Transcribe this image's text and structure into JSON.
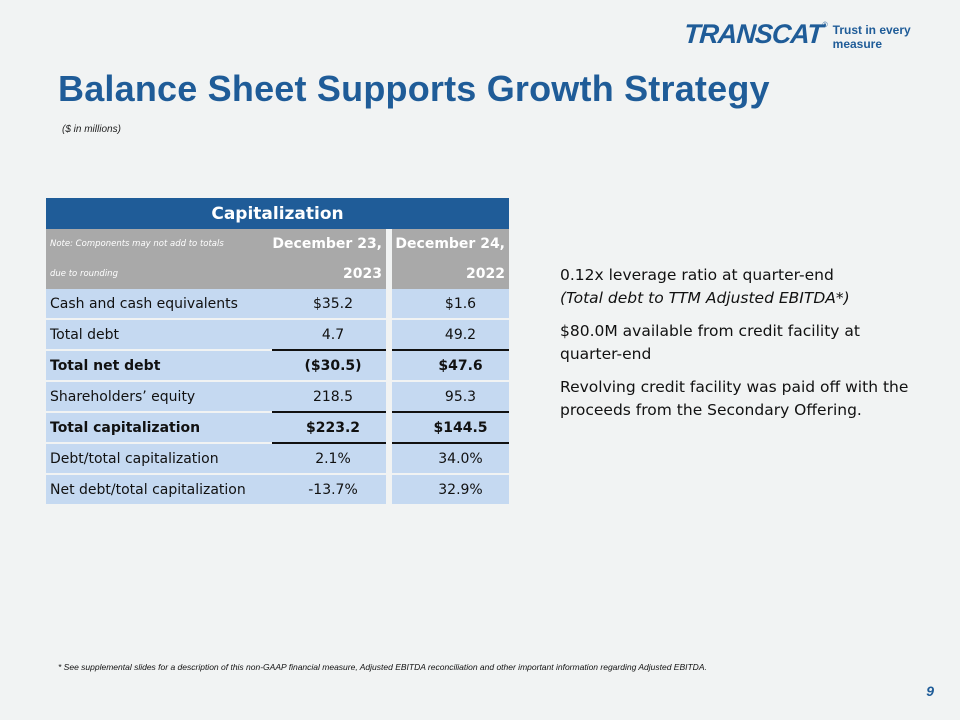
{
  "logo": {
    "word": "TRANSCAT",
    "reg": "®",
    "tagline": "Trust in every measure"
  },
  "title": "Balance Sheet Supports Growth Strategy",
  "subtitle": "($ in millions)",
  "table": {
    "header": "Capitalization",
    "note_line1": "Note: Components may not add to totals",
    "note_line2": "due to rounding",
    "col1_line1": "December 23,",
    "col1_line2": "2023",
    "col2_line1": "December 24,",
    "col2_line2": "2022",
    "rows": [
      {
        "label": "Cash and cash equivalents",
        "v1": "$35.2",
        "v2": "$1.6"
      },
      {
        "label": "Total debt",
        "v1": "4.7",
        "v2": "49.2"
      },
      {
        "label": "Total net debt",
        "v1": "($30.5)",
        "v2": "$47.6"
      },
      {
        "label": "Shareholders’ equity",
        "v1": "218.5",
        "v2": "95.3"
      },
      {
        "label": "Total capitalization",
        "v1": "$223.2",
        "v2": "$144.5"
      },
      {
        "label": "Debt/total capitalization",
        "v1": "2.1%",
        "v2": "34.0%"
      },
      {
        "label": "Net debt/total capitalization",
        "v1": "-13.7%",
        "v2": "32.9%"
      }
    ]
  },
  "side": {
    "p1_line1": "0.12x leverage ratio at quarter-end",
    "p1_line2": "(Total debt to TTM Adjusted EBITDA*)",
    "p2": "$80.0M available from credit facility at quarter-end",
    "p3": "Revolving credit facility was paid off with the proceeds from the Secondary Offering."
  },
  "footnote": "* See supplemental slides for a description of this non-GAAP financial measure, Adjusted EBITDA reconciliation and other important information regarding Adjusted EBITDA.",
  "page_number": "9",
  "colors": {
    "brand_blue": "#1f5c98",
    "row_fill": "#c5d9f1",
    "header_gray": "#a9a9a9",
    "negative": "#e00000"
  }
}
